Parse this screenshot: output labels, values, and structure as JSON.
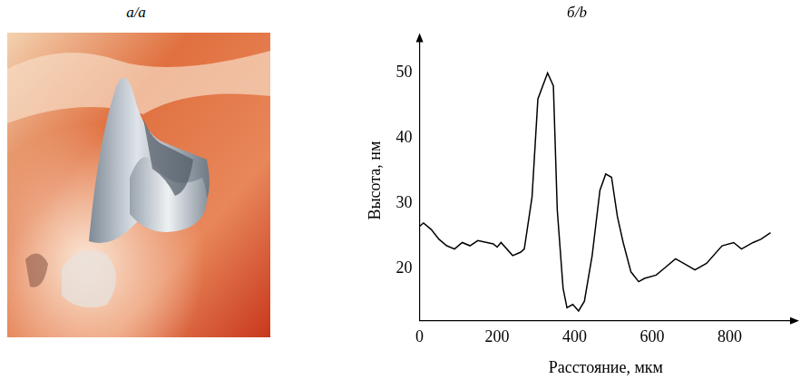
{
  "image": {
    "title": "а/a"
  },
  "chart_data": {
    "type": "line",
    "title": "б/b",
    "x_label": "Расстояние, мкм",
    "y_label": "Высота, нм",
    "x": [
      0,
      10,
      30,
      50,
      70,
      90,
      110,
      130,
      150,
      190,
      200,
      210,
      240,
      260,
      270,
      290,
      305,
      330,
      345,
      355,
      370,
      380,
      395,
      410,
      425,
      445,
      465,
      480,
      495,
      510,
      525,
      545,
      565,
      580,
      610,
      630,
      660,
      690,
      710,
      740,
      780,
      810,
      830,
      860,
      880,
      905
    ],
    "values": [
      26.5,
      27,
      26,
      24.5,
      23.5,
      23,
      24,
      23.5,
      24.3,
      23.8,
      23.3,
      24,
      22,
      22.5,
      23,
      31,
      46,
      50,
      48,
      29,
      17,
      14,
      14.5,
      13.5,
      15,
      22,
      32,
      34.5,
      34,
      28,
      24,
      19.5,
      18,
      18.5,
      19,
      20,
      21.5,
      20.5,
      19.8,
      20.8,
      23.5,
      24,
      23,
      24,
      24.5,
      25.5
    ],
    "color": "#000000",
    "xlim": [
      0,
      960
    ],
    "xticks": [
      0,
      200,
      400,
      600,
      800
    ],
    "ylim": [
      12,
      55
    ],
    "yticks": [
      20,
      30,
      40,
      50
    ],
    "grid": false
  }
}
